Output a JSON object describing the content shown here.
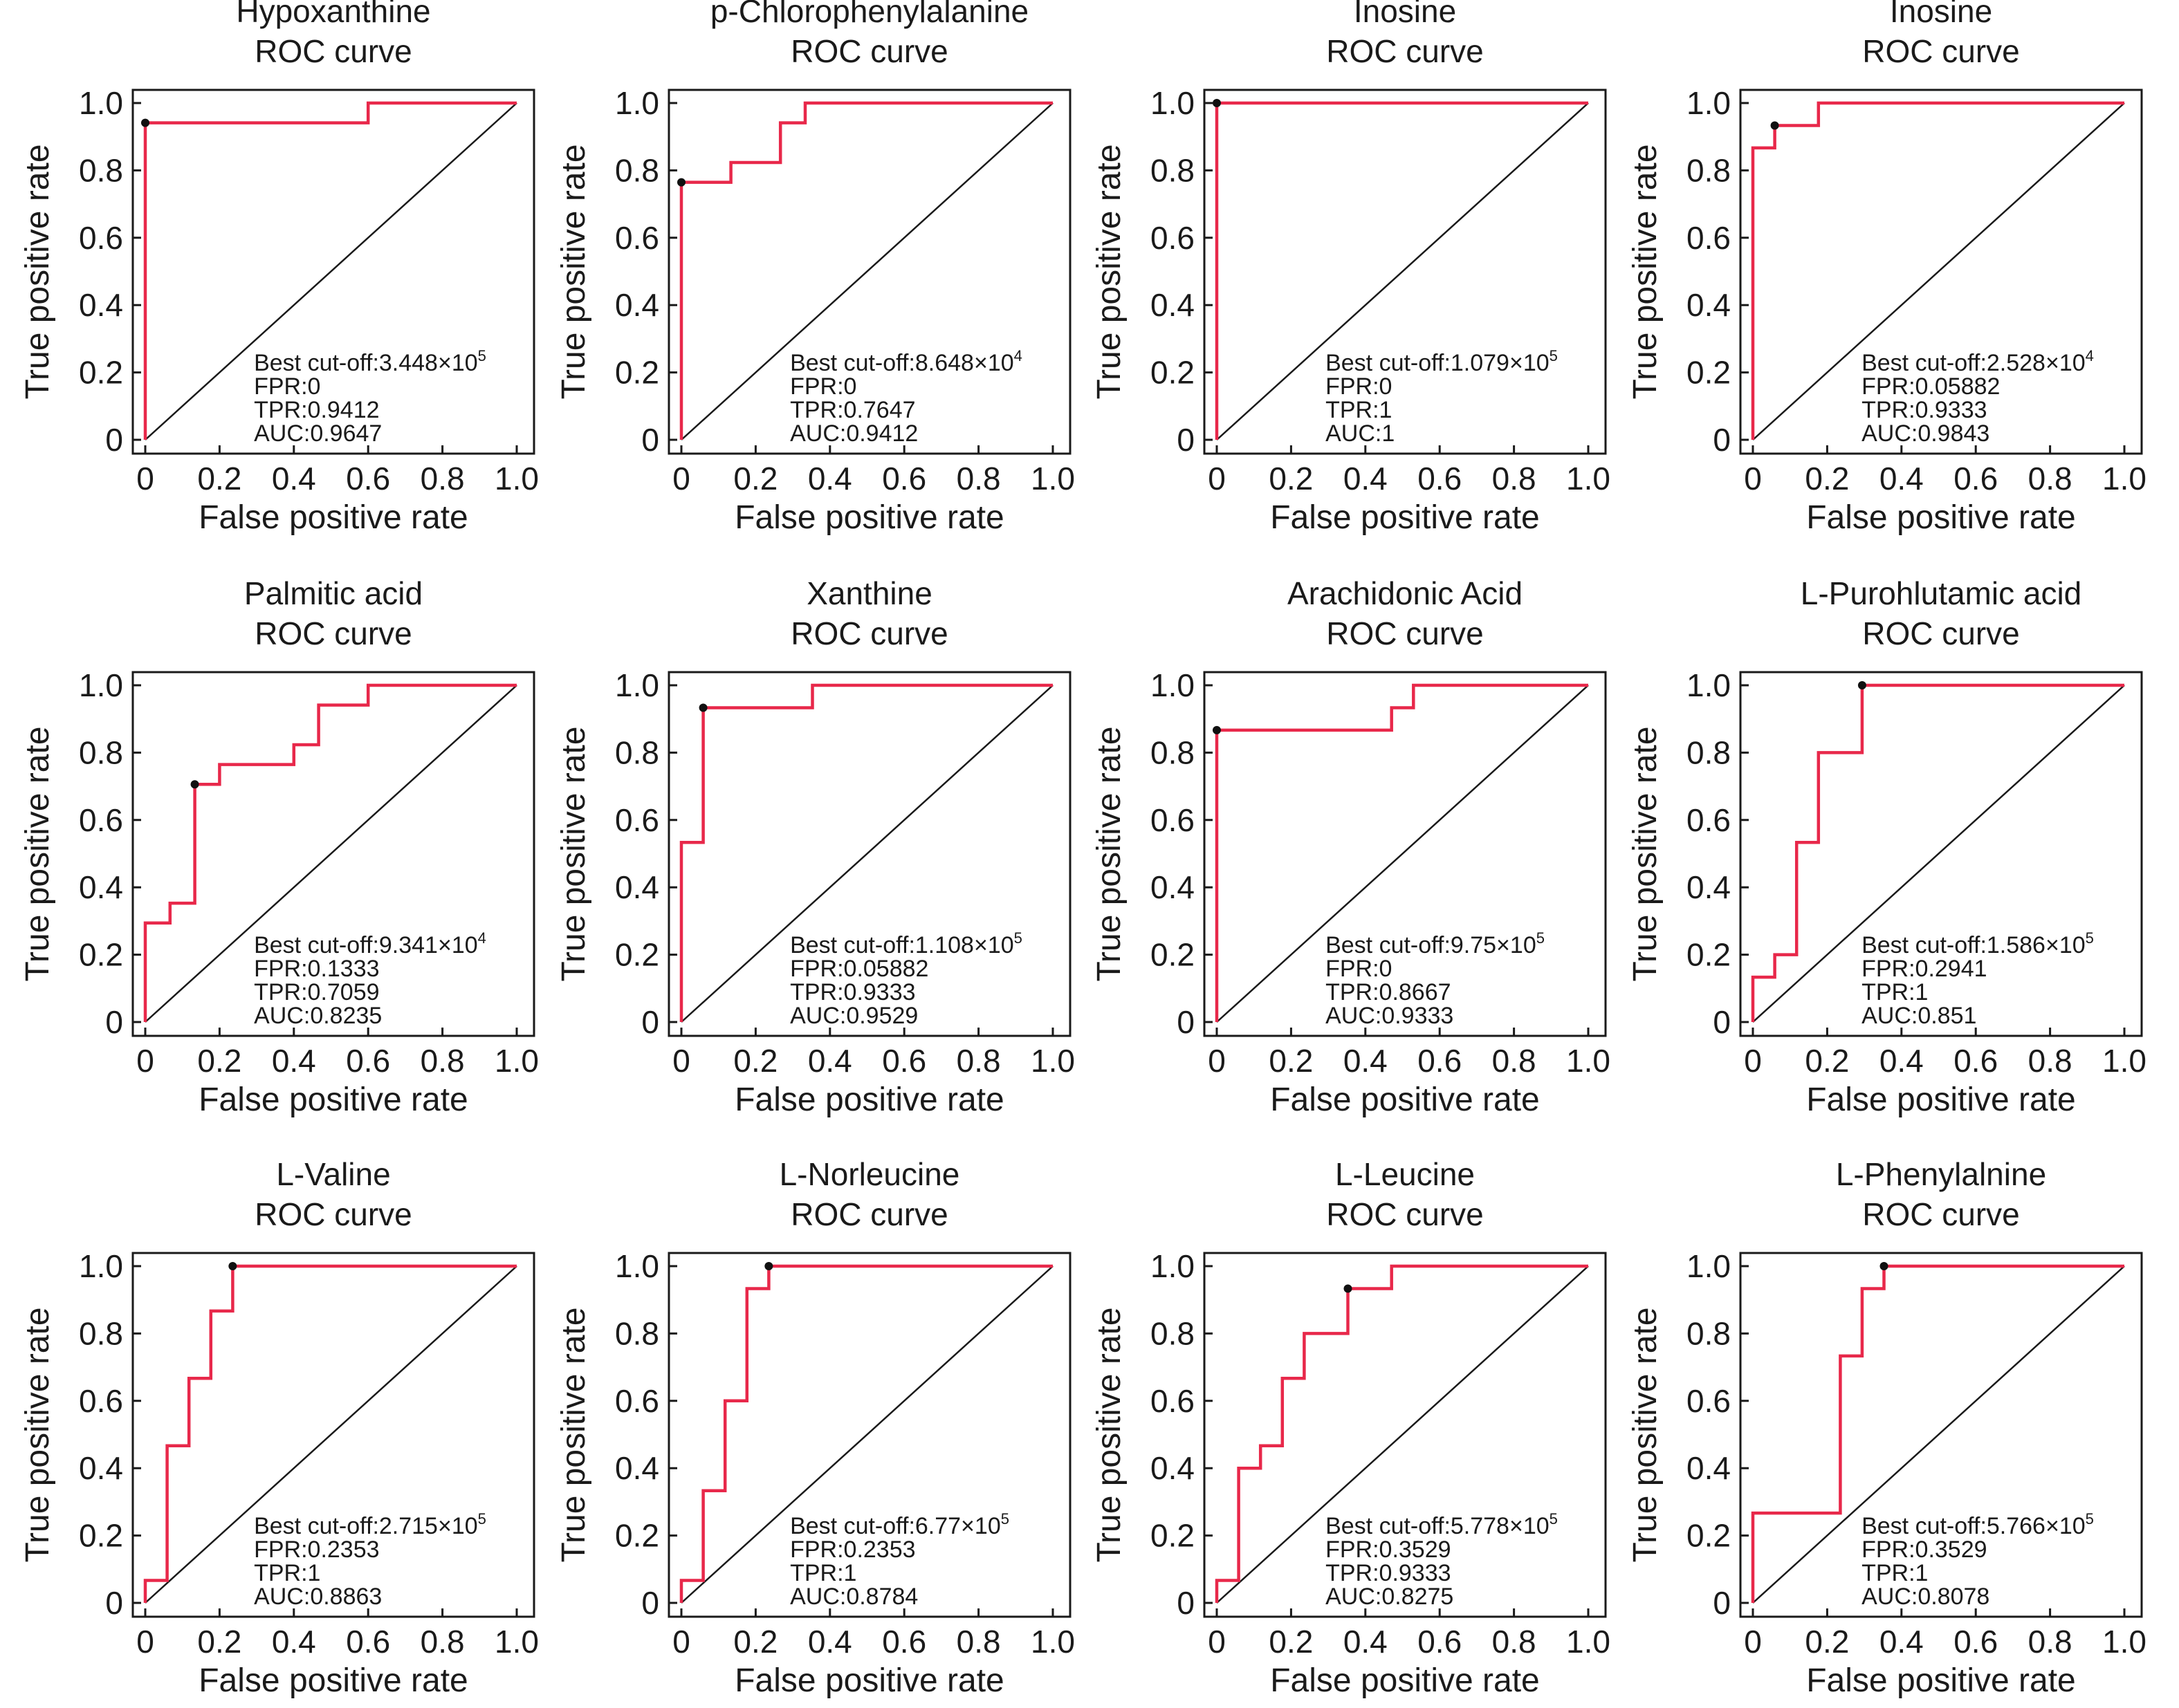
{
  "style": {
    "curve_color": "#e8284a",
    "point_color": "#111111",
    "axis_color": "#1a1a1a"
  },
  "chart_data": [
    {
      "type": "line",
      "title": "Hypoxanthine",
      "subtitle": "ROC curve",
      "xlabel": "False positive rate",
      "ylabel": "True positive rate",
      "xlim": [
        0,
        1
      ],
      "ylim": [
        0,
        1
      ],
      "xticks": [
        "0",
        "0.2",
        "0.4",
        "0.6",
        "0.8",
        "1.0"
      ],
      "yticks": [
        "0",
        "0.2",
        "0.4",
        "0.6",
        "0.8",
        "1.0"
      ],
      "roc": [
        [
          0,
          0
        ],
        [
          0,
          0.9412
        ],
        [
          0.6,
          0.9412
        ],
        [
          0.6,
          1
        ],
        [
          1,
          1
        ]
      ],
      "best_point": [
        0,
        0.9412
      ],
      "annotation": {
        "cutoff_base": "Best cut-off:3.448×10",
        "cutoff_exp": "5",
        "fpr": "FPR:0",
        "tpr": "TPR:0.9412",
        "auc": "AUC:0.9647"
      }
    },
    {
      "type": "line",
      "title": "p-Chlorophenylalanine",
      "subtitle": "ROC curve",
      "xlabel": "False positive rate",
      "ylabel": "True positive rate",
      "xlim": [
        0,
        1
      ],
      "ylim": [
        0,
        1
      ],
      "xticks": [
        "0",
        "0.2",
        "0.4",
        "0.6",
        "0.8",
        "1.0"
      ],
      "yticks": [
        "0",
        "0.2",
        "0.4",
        "0.6",
        "0.8",
        "1.0"
      ],
      "roc": [
        [
          0,
          0
        ],
        [
          0,
          0.7647
        ],
        [
          0.1333,
          0.7647
        ],
        [
          0.1333,
          0.8235
        ],
        [
          0.2667,
          0.8235
        ],
        [
          0.2667,
          0.9412
        ],
        [
          0.3333,
          0.9412
        ],
        [
          0.3333,
          1
        ],
        [
          1,
          1
        ]
      ],
      "best_point": [
        0,
        0.7647
      ],
      "annotation": {
        "cutoff_base": "Best cut-off:8.648×10",
        "cutoff_exp": "4",
        "fpr": "FPR:0",
        "tpr": "TPR:0.7647",
        "auc": "AUC:0.9412"
      }
    },
    {
      "type": "line",
      "title": "Inosine",
      "subtitle": "ROC curve",
      "xlabel": "False positive rate",
      "ylabel": "True positive rate",
      "xlim": [
        0,
        1
      ],
      "ylim": [
        0,
        1
      ],
      "xticks": [
        "0",
        "0.2",
        "0.4",
        "0.6",
        "0.8",
        "1.0"
      ],
      "yticks": [
        "0",
        "0.2",
        "0.4",
        "0.6",
        "0.8",
        "1.0"
      ],
      "roc": [
        [
          0,
          0
        ],
        [
          0,
          1
        ],
        [
          1,
          1
        ]
      ],
      "best_point": [
        0,
        1
      ],
      "annotation": {
        "cutoff_base": "Best cut-off:1.079×10",
        "cutoff_exp": "5",
        "fpr": "FPR:0",
        "tpr": "TPR:1",
        "auc": "AUC:1"
      }
    },
    {
      "type": "line",
      "title": "Inosine",
      "subtitle": "ROC curve",
      "xlabel": "False positive rate",
      "ylabel": "True positive rate",
      "xlim": [
        0,
        1
      ],
      "ylim": [
        0,
        1
      ],
      "xticks": [
        "0",
        "0.2",
        "0.4",
        "0.6",
        "0.8",
        "1.0"
      ],
      "yticks": [
        "0",
        "0.2",
        "0.4",
        "0.6",
        "0.8",
        "1.0"
      ],
      "roc": [
        [
          0,
          0
        ],
        [
          0,
          0.8667
        ],
        [
          0.0588,
          0.8667
        ],
        [
          0.0588,
          0.9333
        ],
        [
          0.1765,
          0.9333
        ],
        [
          0.1765,
          1
        ],
        [
          1,
          1
        ]
      ],
      "best_point": [
        0.0588,
        0.9333
      ],
      "annotation": {
        "cutoff_base": "Best cut-off:2.528×10",
        "cutoff_exp": "4",
        "fpr": "FPR:0.05882",
        "tpr": "TPR:0.9333",
        "auc": "AUC:0.9843"
      }
    },
    {
      "type": "line",
      "title": "Palmitic acid",
      "subtitle": "ROC curve",
      "xlabel": "False positive rate",
      "ylabel": "True positive rate",
      "xlim": [
        0,
        1
      ],
      "ylim": [
        0,
        1
      ],
      "xticks": [
        "0",
        "0.2",
        "0.4",
        "0.6",
        "0.8",
        "1.0"
      ],
      "yticks": [
        "0",
        "0.2",
        "0.4",
        "0.6",
        "0.8",
        "1.0"
      ],
      "roc": [
        [
          0,
          0
        ],
        [
          0,
          0.2941
        ],
        [
          0.0667,
          0.2941
        ],
        [
          0.0667,
          0.3529
        ],
        [
          0.1333,
          0.3529
        ],
        [
          0.1333,
          0.7059
        ],
        [
          0.2,
          0.7059
        ],
        [
          0.2,
          0.7647
        ],
        [
          0.4,
          0.7647
        ],
        [
          0.4,
          0.8235
        ],
        [
          0.4667,
          0.8235
        ],
        [
          0.4667,
          0.9412
        ],
        [
          0.6,
          0.9412
        ],
        [
          0.6,
          1
        ],
        [
          1,
          1
        ]
      ],
      "best_point": [
        0.1333,
        0.7059
      ],
      "annotation": {
        "cutoff_base": "Best cut-off:9.341×10",
        "cutoff_exp": "4",
        "fpr": "FPR:0.1333",
        "tpr": "TPR:0.7059",
        "auc": "AUC:0.8235"
      }
    },
    {
      "type": "line",
      "title": "Xanthine",
      "subtitle": "ROC curve",
      "xlabel": "False positive rate",
      "ylabel": "True positive rate",
      "xlim": [
        0,
        1
      ],
      "ylim": [
        0,
        1
      ],
      "xticks": [
        "0",
        "0.2",
        "0.4",
        "0.6",
        "0.8",
        "1.0"
      ],
      "yticks": [
        "0",
        "0.2",
        "0.4",
        "0.6",
        "0.8",
        "1.0"
      ],
      "roc": [
        [
          0,
          0
        ],
        [
          0,
          0.5333
        ],
        [
          0.0588,
          0.5333
        ],
        [
          0.0588,
          0.9333
        ],
        [
          0.3529,
          0.9333
        ],
        [
          0.3529,
          1
        ],
        [
          1,
          1
        ]
      ],
      "best_point": [
        0.0588,
        0.9333
      ],
      "annotation": {
        "cutoff_base": "Best cut-off:1.108×10",
        "cutoff_exp": "5",
        "fpr": "FPR:0.05882",
        "tpr": "TPR:0.9333",
        "auc": "AUC:0.9529"
      }
    },
    {
      "type": "line",
      "title": "Arachidonic Acid",
      "subtitle": "ROC curve",
      "xlabel": "False positive rate",
      "ylabel": "True positive rate",
      "xlim": [
        0,
        1
      ],
      "ylim": [
        0,
        1
      ],
      "xticks": [
        "0",
        "0.2",
        "0.4",
        "0.6",
        "0.8",
        "1.0"
      ],
      "yticks": [
        "0",
        "0.2",
        "0.4",
        "0.6",
        "0.8",
        "1.0"
      ],
      "roc": [
        [
          0,
          0
        ],
        [
          0,
          0.8667
        ],
        [
          0.4706,
          0.8667
        ],
        [
          0.4706,
          0.9333
        ],
        [
          0.5294,
          0.9333
        ],
        [
          0.5294,
          1
        ],
        [
          1,
          1
        ]
      ],
      "best_point": [
        0,
        0.8667
      ],
      "annotation": {
        "cutoff_base": "Best cut-off:9.75×10",
        "cutoff_exp": "5",
        "fpr": "FPR:0",
        "tpr": "TPR:0.8667",
        "auc": "AUC:0.9333"
      }
    },
    {
      "type": "line",
      "title": "L-Purohlutamic acid",
      "subtitle": "ROC curve",
      "xlabel": "False positive rate",
      "ylabel": "True positive rate",
      "xlim": [
        0,
        1
      ],
      "ylim": [
        0,
        1
      ],
      "xticks": [
        "0",
        "0.2",
        "0.4",
        "0.6",
        "0.8",
        "1.0"
      ],
      "yticks": [
        "0",
        "0.2",
        "0.4",
        "0.6",
        "0.8",
        "1.0"
      ],
      "roc": [
        [
          0,
          0
        ],
        [
          0,
          0.1333
        ],
        [
          0.0588,
          0.1333
        ],
        [
          0.0588,
          0.2
        ],
        [
          0.1176,
          0.2
        ],
        [
          0.1176,
          0.5333
        ],
        [
          0.1765,
          0.5333
        ],
        [
          0.1765,
          0.8
        ],
        [
          0.2941,
          0.8
        ],
        [
          0.2941,
          1
        ],
        [
          1,
          1
        ]
      ],
      "best_point": [
        0.2941,
        1
      ],
      "annotation": {
        "cutoff_base": "Best cut-off:1.586×10",
        "cutoff_exp": "5",
        "fpr": "FPR:0.2941",
        "tpr": "TPR:1",
        "auc": "AUC:0.851"
      }
    },
    {
      "type": "line",
      "title": "L-Valine",
      "subtitle": "ROC curve",
      "xlabel": "False positive rate",
      "ylabel": "True positive rate",
      "xlim": [
        0,
        1
      ],
      "ylim": [
        0,
        1
      ],
      "xticks": [
        "0",
        "0.2",
        "0.4",
        "0.6",
        "0.8",
        "1.0"
      ],
      "yticks": [
        "0",
        "0.2",
        "0.4",
        "0.6",
        "0.8",
        "1.0"
      ],
      "roc": [
        [
          0,
          0
        ],
        [
          0,
          0.0667
        ],
        [
          0.0588,
          0.0667
        ],
        [
          0.0588,
          0.4667
        ],
        [
          0.1176,
          0.4667
        ],
        [
          0.1176,
          0.6667
        ],
        [
          0.1765,
          0.6667
        ],
        [
          0.1765,
          0.8667
        ],
        [
          0.2353,
          0.8667
        ],
        [
          0.2353,
          1
        ],
        [
          1,
          1
        ]
      ],
      "best_point": [
        0.2353,
        1
      ],
      "annotation": {
        "cutoff_base": "Best cut-off:2.715×10",
        "cutoff_exp": "5",
        "fpr": "FPR:0.2353",
        "tpr": "TPR:1",
        "auc": "AUC:0.8863"
      }
    },
    {
      "type": "line",
      "title": "L-Norleucine",
      "subtitle": "ROC curve",
      "xlabel": "False positive rate",
      "ylabel": "True positive rate",
      "xlim": [
        0,
        1
      ],
      "ylim": [
        0,
        1
      ],
      "xticks": [
        "0",
        "0.2",
        "0.4",
        "0.6",
        "0.8",
        "1.0"
      ],
      "yticks": [
        "0",
        "0.2",
        "0.4",
        "0.6",
        "0.8",
        "1.0"
      ],
      "roc": [
        [
          0,
          0
        ],
        [
          0,
          0.0667
        ],
        [
          0.0588,
          0.0667
        ],
        [
          0.0588,
          0.3333
        ],
        [
          0.1176,
          0.3333
        ],
        [
          0.1176,
          0.6
        ],
        [
          0.1765,
          0.6
        ],
        [
          0.1765,
          0.9333
        ],
        [
          0.2353,
          0.9333
        ],
        [
          0.2353,
          1
        ],
        [
          1,
          1
        ]
      ],
      "best_point": [
        0.2353,
        1
      ],
      "annotation": {
        "cutoff_base": "Best cut-off:6.77×10",
        "cutoff_exp": "5",
        "fpr": "FPR:0.2353",
        "tpr": "TPR:1",
        "auc": "AUC:0.8784"
      }
    },
    {
      "type": "line",
      "title": "L-Leucine",
      "subtitle": "ROC curve",
      "xlabel": "False positive rate",
      "ylabel": "True positive rate",
      "xlim": [
        0,
        1
      ],
      "ylim": [
        0,
        1
      ],
      "xticks": [
        "0",
        "0.2",
        "0.4",
        "0.6",
        "0.8",
        "1.0"
      ],
      "yticks": [
        "0",
        "0.2",
        "0.4",
        "0.6",
        "0.8",
        "1.0"
      ],
      "roc": [
        [
          0,
          0
        ],
        [
          0,
          0.0667
        ],
        [
          0.0588,
          0.0667
        ],
        [
          0.0588,
          0.4
        ],
        [
          0.1176,
          0.4
        ],
        [
          0.1176,
          0.4667
        ],
        [
          0.1765,
          0.4667
        ],
        [
          0.1765,
          0.6667
        ],
        [
          0.2353,
          0.6667
        ],
        [
          0.2353,
          0.8
        ],
        [
          0.3529,
          0.8
        ],
        [
          0.3529,
          0.9333
        ],
        [
          0.4706,
          0.9333
        ],
        [
          0.4706,
          1
        ],
        [
          1,
          1
        ]
      ],
      "best_point": [
        0.3529,
        0.9333
      ],
      "annotation": {
        "cutoff_base": "Best cut-off:5.778×10",
        "cutoff_exp": "5",
        "fpr": "FPR:0.3529",
        "tpr": "TPR:0.9333",
        "auc": "AUC:0.8275"
      }
    },
    {
      "type": "line",
      "title": "L-Phenylalnine",
      "subtitle": "ROC curve",
      "xlabel": "False positive rate",
      "ylabel": "True positive rate",
      "xlim": [
        0,
        1
      ],
      "ylim": [
        0,
        1
      ],
      "xticks": [
        "0",
        "0.2",
        "0.4",
        "0.6",
        "0.8",
        "1.0"
      ],
      "yticks": [
        "0",
        "0.2",
        "0.4",
        "0.6",
        "0.8",
        "1.0"
      ],
      "roc": [
        [
          0,
          0
        ],
        [
          0,
          0.2667
        ],
        [
          0.2353,
          0.2667
        ],
        [
          0.2353,
          0.7333
        ],
        [
          0.2941,
          0.7333
        ],
        [
          0.2941,
          0.9333
        ],
        [
          0.3529,
          0.9333
        ],
        [
          0.3529,
          1
        ],
        [
          1,
          1
        ]
      ],
      "best_point": [
        0.3529,
        1
      ],
      "annotation": {
        "cutoff_base": "Best cut-off:5.766×10",
        "cutoff_exp": "5",
        "fpr": "FPR:0.3529",
        "tpr": "TPR:1",
        "auc": "AUC:0.8078"
      }
    }
  ]
}
